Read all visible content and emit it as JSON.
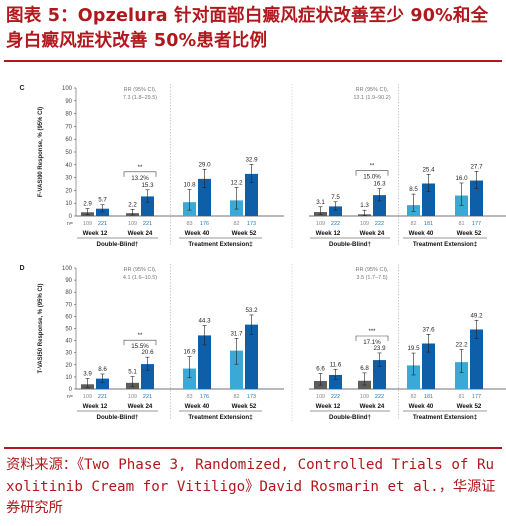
{
  "title": "图表 5：Opzelura 针对面部白癜风症状改善至少 90%和全身白癜风症状改善 50%患者比例",
  "source": "资料来源：《Two Phase 3, Randomized, Controlled Trials of Ruxolitinib Cream for Vitiligo》David Rosmarin et al.，华源证券研究所",
  "colors": {
    "title": "#b0181d",
    "vehicle": "#5d5d5d",
    "cream": "#0f5fa8",
    "ext_vehicle": "#3aa9d5",
    "ext_cream": "#0f5fa8"
  },
  "common": {
    "n_label": "n=",
    "weeks": [
      "Week 12",
      "Week 24",
      "Week 40",
      "Week 52"
    ],
    "double_blind": "Double-Blind†",
    "extension": "Treatment Extension‡"
  },
  "chart_data": [
    {
      "type": "bar",
      "panel": "C",
      "ylabel": "F-VASI90 Response, % (95% CI)",
      "ylim": [
        0,
        100
      ],
      "yticks": [
        0,
        10,
        20,
        30,
        40,
        50,
        60,
        70,
        80,
        90,
        100
      ],
      "studies": [
        {
          "rr_label": "RR (95% CI),",
          "rr_value": "7.3 (1.8–29.5)",
          "diff_sig": "**",
          "diff_label": "13.2%",
          "groups": [
            {
              "week": "Week 12",
              "phase": "double-blind",
              "values": [
                2.9,
                5.7
              ],
              "labels": [
                "2.9",
                "5.7"
              ],
              "ci_low": [
                1,
                3.2
              ],
              "ci_high": [
                5.8,
                8.8
              ],
              "n": [
                "109",
                "221"
              ]
            },
            {
              "week": "Week 24",
              "phase": "double-blind",
              "values": [
                2.2,
                15.3
              ],
              "labels": [
                "2.2",
                "15.3"
              ],
              "ci_low": [
                0.8,
                10.8
              ],
              "ci_high": [
                5.2,
                20.5
              ],
              "n": [
                "109",
                "221"
              ]
            },
            {
              "week": "Week 40",
              "phase": "extension",
              "values": [
                10.8,
                29.0
              ],
              "labels": [
                "10.8",
                "29.0"
              ],
              "ci_low": [
                4.6,
                22.2
              ],
              "ci_high": [
                20.7,
                36.5
              ],
              "n": [
                "83",
                "176"
              ]
            },
            {
              "week": "Week 52",
              "phase": "extension",
              "values": [
                12.2,
                32.9
              ],
              "labels": [
                "12.2",
                "32.9"
              ],
              "ci_low": [
                5.4,
                26.0
              ],
              "ci_high": [
                22.3,
                40.3
              ],
              "n": [
                "82",
                "173"
              ]
            }
          ]
        },
        {
          "rr_label": "RR (95% CI),",
          "rr_value": "13.1 (1.9–90.2)",
          "diff_sig": "**",
          "diff_label": "15.0%",
          "groups": [
            {
              "week": "Week 12",
              "phase": "double-blind",
              "values": [
                3.1,
                7.5
              ],
              "labels": [
                "3.1",
                "7.5"
              ],
              "ci_low": [
                1.1,
                4.6
              ],
              "ci_high": [
                7.2,
                11.1
              ],
              "n": [
                "109",
                "222"
              ]
            },
            {
              "week": "Week 24",
              "phase": "double-blind",
              "values": [
                1.3,
                16.3
              ],
              "labels": [
                "1.3",
                "16.3"
              ],
              "ci_low": [
                0.2,
                11.8
              ],
              "ci_high": [
                4.5,
                21.4
              ],
              "n": [
                "109",
                "222"
              ]
            },
            {
              "week": "Week 40",
              "phase": "extension",
              "values": [
                8.5,
                25.4
              ],
              "labels": [
                "8.5",
                "25.4"
              ],
              "ci_low": [
                3.6,
                19.2
              ],
              "ci_high": [
                17.1,
                32.5
              ],
              "n": [
                "82",
                "181"
              ]
            },
            {
              "week": "Week 52",
              "phase": "extension",
              "values": [
                16.0,
                27.7
              ],
              "labels": [
                "16.0",
                "27.7"
              ],
              "ci_low": [
                8.4,
                21.4
              ],
              "ci_high": [
                25.8,
                34.9
              ],
              "n": [
                "81",
                "177"
              ]
            }
          ]
        }
      ]
    },
    {
      "type": "bar",
      "panel": "D",
      "ylabel": "T-VASI50 Response, % (95% CI)",
      "ylim": [
        0,
        100
      ],
      "yticks": [
        0,
        10,
        20,
        30,
        40,
        50,
        60,
        70,
        80,
        90,
        100
      ],
      "studies": [
        {
          "rr_label": "RR (95% CI),",
          "rr_value": "4.1 (1.6–10.5)",
          "diff_sig": "**",
          "diff_label": "15.5%",
          "groups": [
            {
              "week": "Week 12",
              "phase": "double-blind",
              "values": [
                3.9,
                8.6
              ],
              "labels": [
                "3.9",
                "8.6"
              ],
              "ci_low": [
                1.4,
                5.5
              ],
              "ci_high": [
                8.7,
                12.4
              ],
              "n": [
                "109",
                "221"
              ]
            },
            {
              "week": "Week 24",
              "phase": "double-blind",
              "values": [
                5.1,
                20.6
              ],
              "labels": [
                "5.1",
                "20.6"
              ],
              "ci_low": [
                2.2,
                15.5
              ],
              "ci_high": [
                10.3,
                26.3
              ],
              "n": [
                "109",
                "221"
              ]
            },
            {
              "week": "Week 40",
              "phase": "extension",
              "values": [
                16.9,
                44.3
              ],
              "labels": [
                "16.9",
                "44.3"
              ],
              "ci_low": [
                9.3,
                36.4
              ],
              "ci_high": [
                26.8,
                52.4
              ],
              "n": [
                "83",
                "176"
              ]
            },
            {
              "week": "Week 52",
              "phase": "extension",
              "values": [
                31.7,
                53.2
              ],
              "labels": [
                "31.7",
                "53.2"
              ],
              "ci_low": [
                20.5,
                45.2
              ],
              "ci_high": [
                41.9,
                61.2
              ],
              "n": [
                "82",
                "173"
              ]
            }
          ]
        },
        {
          "rr_label": "RR (95% CI),",
          "rr_value": "3.5 (1.7–7.5)",
          "diff_sig": "***",
          "diff_label": "17.1%",
          "groups": [
            {
              "week": "Week 12",
              "phase": "double-blind",
              "values": [
                6.6,
                11.6
              ],
              "labels": [
                "6.6",
                "11.6"
              ],
              "ci_low": [
                3.2,
                8.0
              ],
              "ci_high": [
                12.8,
                16.3
              ],
              "n": [
                "109",
                "222"
              ]
            },
            {
              "week": "Week 24",
              "phase": "double-blind",
              "values": [
                6.8,
                23.9
              ],
              "labels": [
                "6.8",
                "23.9"
              ],
              "ci_low": [
                3.3,
                18.6
              ],
              "ci_high": [
                13.3,
                29.8
              ],
              "n": [
                "109",
                "222"
              ]
            },
            {
              "week": "Week 40",
              "phase": "extension",
              "values": [
                19.5,
                37.6
              ],
              "labels": [
                "19.5",
                "37.6"
              ],
              "ci_low": [
                11.6,
                30.5
              ],
              "ci_high": [
                29.7,
                45.2
              ],
              "n": [
                "82",
                "181"
              ]
            },
            {
              "week": "Week 52",
              "phase": "extension",
              "values": [
                22.2,
                49.2
              ],
              "labels": [
                "22.2",
                "49.2"
              ],
              "ci_low": [
                13.7,
                41.6
              ],
              "ci_high": [
                32.7,
                56.8
              ],
              "n": [
                "81",
                "177"
              ]
            }
          ]
        }
      ]
    }
  ]
}
